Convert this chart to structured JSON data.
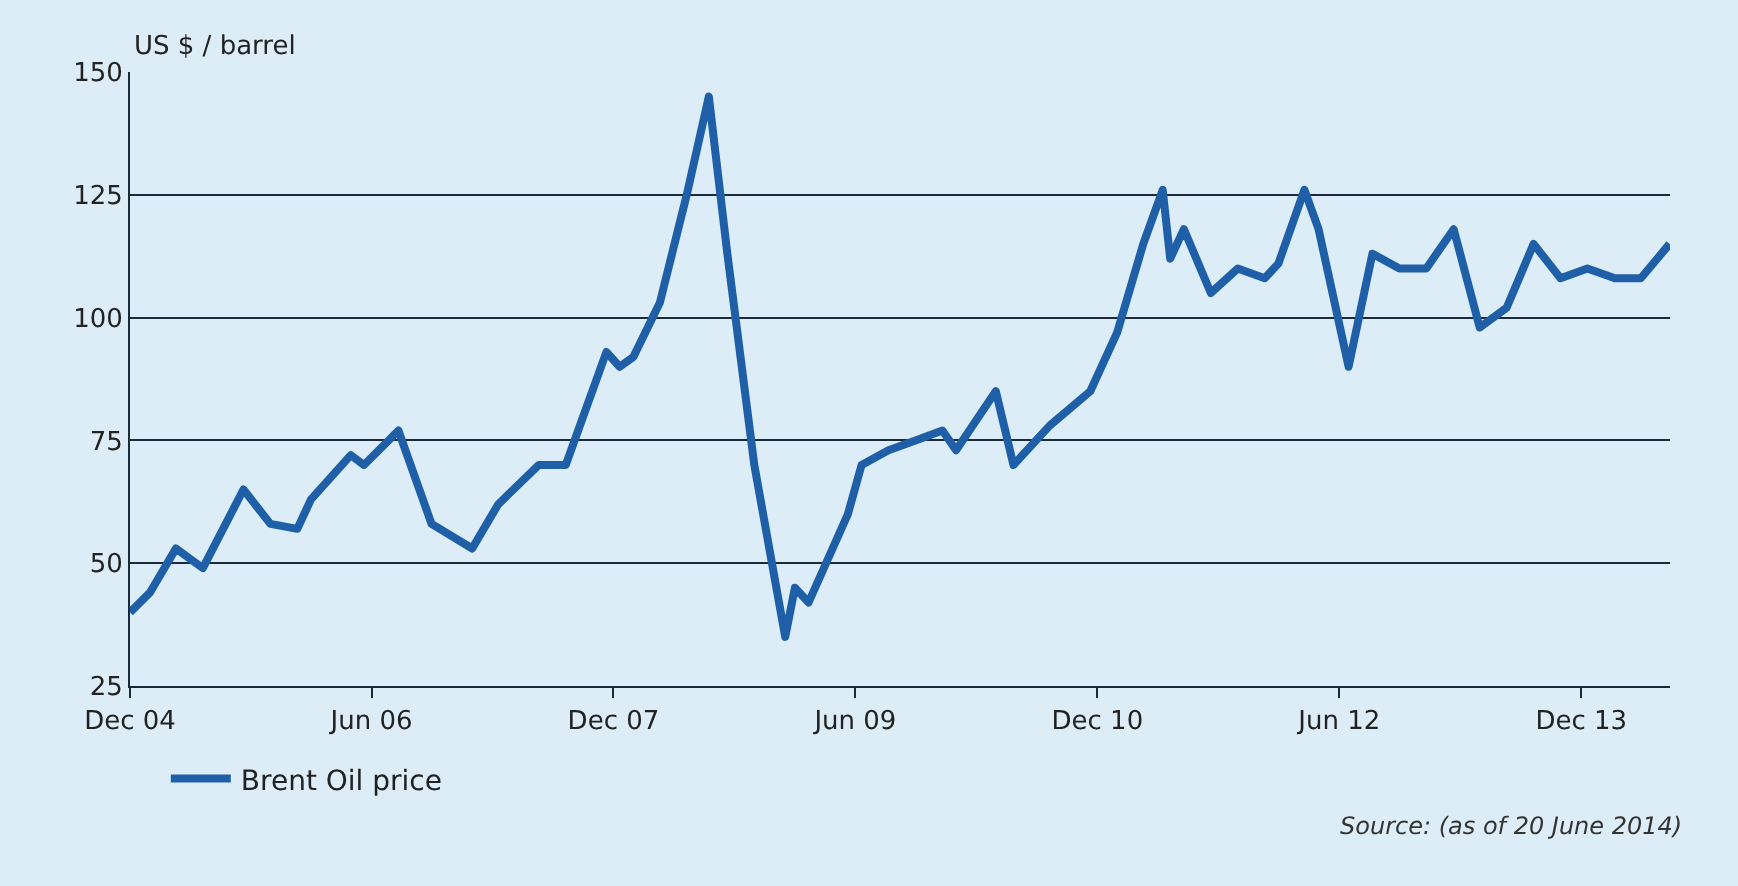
{
  "chart_data": {
    "type": "line",
    "ylabel": "US $ / barrel",
    "annotations": [
      "Source: (as of 20 June 2014)"
    ],
    "x": [
      "2004-12-01",
      "2005-01-15",
      "2005-03-15",
      "2005-05-15",
      "2005-08-15",
      "2005-10-15",
      "2005-12-15",
      "2006-01-15",
      "2006-04-15",
      "2006-05-15",
      "2006-08-01",
      "2006-10-15",
      "2007-01-15",
      "2007-03-15",
      "2007-06-15",
      "2007-08-15",
      "2007-11-15",
      "2007-12-15",
      "2008-01-15",
      "2008-03-15",
      "2008-05-15",
      "2008-07-04",
      "2008-08-15",
      "2008-10-15",
      "2008-12-24",
      "2009-01-15",
      "2009-02-15",
      "2009-05-15",
      "2009-06-15",
      "2009-08-15",
      "2009-10-15",
      "2009-12-15",
      "2010-01-15",
      "2010-04-15",
      "2010-05-25",
      "2010-08-15",
      "2010-11-15",
      "2011-01-15",
      "2011-03-15",
      "2011-04-28",
      "2011-05-15",
      "2011-06-15",
      "2011-08-15",
      "2011-10-15",
      "2011-12-15",
      "2012-01-15",
      "2012-03-14",
      "2012-04-15",
      "2012-06-22",
      "2012-08-15",
      "2012-10-15",
      "2012-12-15",
      "2013-02-15",
      "2013-04-15",
      "2013-06-15",
      "2013-08-15",
      "2013-10-15",
      "2013-12-15",
      "2014-02-15",
      "2014-04-15",
      "2014-06-19"
    ],
    "series": [
      {
        "name": "Brent Oil price",
        "color": "#1f5fa8",
        "values": [
          40,
          44,
          53,
          49,
          65,
          58,
          57,
          63,
          72,
          70,
          77,
          58,
          53,
          62,
          70,
          70,
          93,
          90,
          92,
          103,
          125,
          145,
          113,
          70,
          35,
          45,
          42,
          60,
          70,
          73,
          75,
          77,
          73,
          85,
          70,
          78,
          85,
          97,
          115,
          126,
          112,
          118,
          105,
          110,
          108,
          111,
          126,
          118,
          90,
          113,
          110,
          110,
          118,
          98,
          102,
          115,
          108,
          110,
          108,
          108,
          115
        ]
      }
    ],
    "xlim": [
      "2004-12-01",
      "2014-06-20"
    ],
    "xticks": [
      {
        "value": "2004-12-01",
        "label": "Dec 04"
      },
      {
        "value": "2006-06-01",
        "label": "Jun 06"
      },
      {
        "value": "2007-12-01",
        "label": "Dec 07"
      },
      {
        "value": "2009-06-01",
        "label": "Jun 09"
      },
      {
        "value": "2010-12-01",
        "label": "Dec 10"
      },
      {
        "value": "2012-06-01",
        "label": "Jun 12"
      },
      {
        "value": "2013-12-01",
        "label": "Dec 13"
      }
    ],
    "ylim": [
      25,
      150
    ],
    "yticks": [
      25,
      50,
      75,
      100,
      125,
      150
    ],
    "grid": "y",
    "legend": "bottom left",
    "marker": "none",
    "line_style": "solid"
  }
}
